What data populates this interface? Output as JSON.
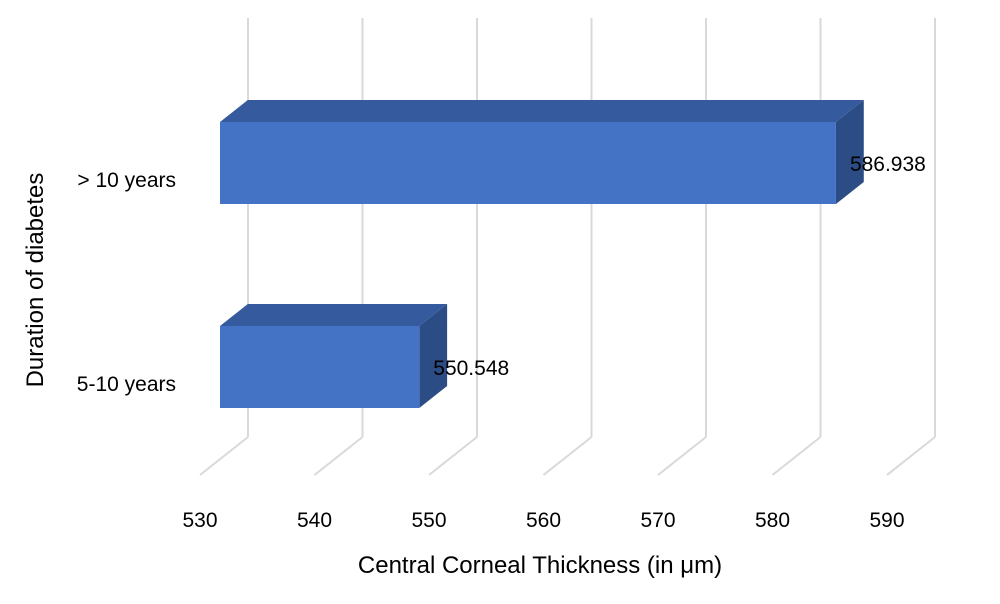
{
  "chart_data": {
    "type": "bar",
    "orientation": "horizontal",
    "style": "3d",
    "categories": [
      "5-10 years",
      "> 10 years"
    ],
    "values": [
      550.548,
      586.938
    ],
    "data_labels": [
      "550.548",
      "586.938"
    ],
    "xlabel": "Central Corneal Thickness (in μm)",
    "ylabel": "Duration of diabetes",
    "xlim": [
      530,
      590
    ],
    "xticks": [
      "530",
      "540",
      "550",
      "560",
      "570",
      "580",
      "590"
    ],
    "grid": true,
    "legend": "none",
    "colors": {
      "bar_front": "#4472C4",
      "bar_top": "#355A9E",
      "bar_side": "#2C4C86",
      "gridline": "#D9D9D9"
    }
  }
}
